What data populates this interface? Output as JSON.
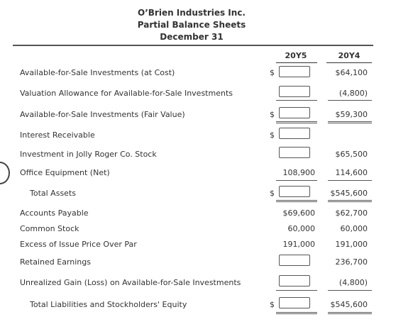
{
  "header": {
    "company": "O’Brien Industries Inc.",
    "title": "Partial Balance Sheets",
    "date": "December 31"
  },
  "columns": {
    "y5": "20Y5",
    "y4": "20Y4"
  },
  "rows": [
    {
      "label": "Available-for-Sale Investments (at Cost)",
      "y4": "$64,100",
      "dollar": "$"
    },
    {
      "label": "Valuation Allowance for Available-for-Sale Investments",
      "y4": "(4,800)"
    },
    {
      "label": "Available-for-Sale Investments (Fair Value)",
      "y4": "$59,300",
      "dollar": "$"
    },
    {
      "label": "Interest Receivable",
      "dollar": "$"
    },
    {
      "label": "Investment in Jolly Roger Co. Stock",
      "y4": "$65,500"
    },
    {
      "label": "Office Equipment (Net)",
      "y5": "108,900",
      "y4": "114,600"
    },
    {
      "label": "Total Assets",
      "y4": "$545,600",
      "dollar": "$"
    },
    {
      "label": "Accounts Payable",
      "y5": "$69,600",
      "y4": "$62,700"
    },
    {
      "label": "Common Stock",
      "y5": "60,000",
      "y4": "60,000"
    },
    {
      "label": "Excess of Issue Price Over Par",
      "y5": "191,000",
      "y4": "191,000"
    },
    {
      "label": "Retained Earnings",
      "y4": "236,700"
    },
    {
      "label": "Unrealized Gain (Loss) on Available-for-Sale Investments",
      "y4": "(4,800)"
    },
    {
      "label": "Total Liabilities and Stockholders' Equity",
      "y4": "$545,600",
      "dollar": "$"
    }
  ]
}
